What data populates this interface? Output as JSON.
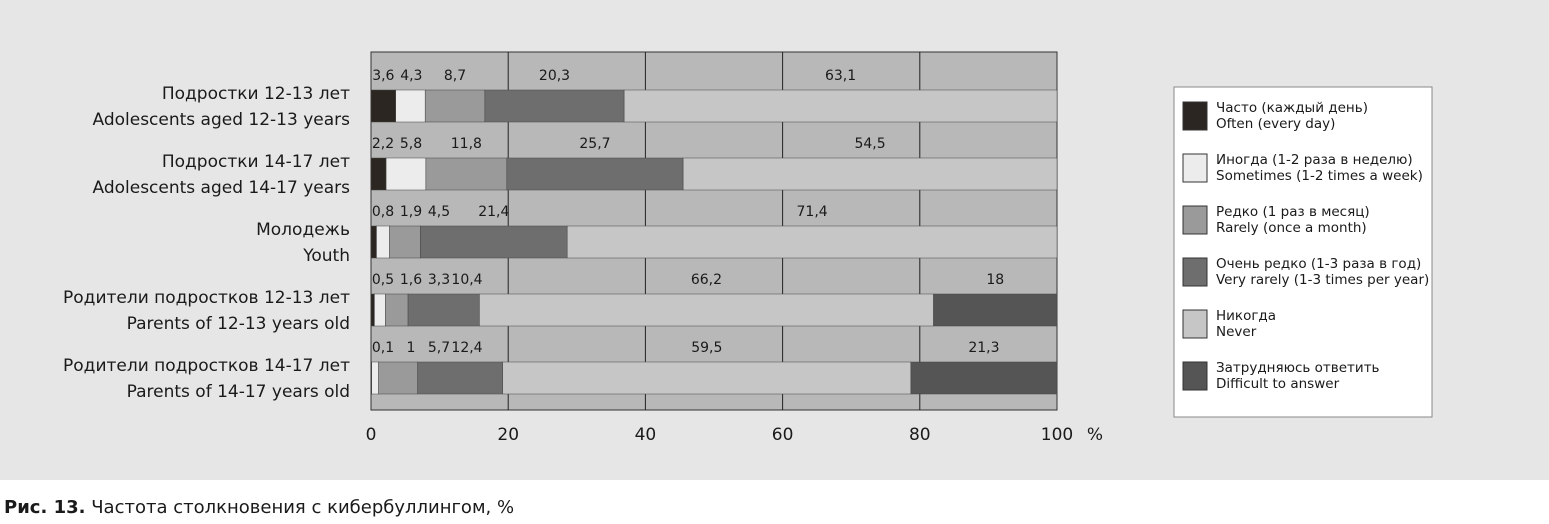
{
  "chart_data": {
    "type": "stacked-bar-horizontal",
    "figure_label": "Рис. 13.",
    "title": "Частота столкновения с кибербуллингом, %",
    "categories": [
      [
        "Подростки 12-13 лет",
        "Adolescents aged 12-13 years"
      ],
      [
        "Подростки 14-17 лет",
        "Adolescents aged 14-17 years"
      ],
      [
        "Молодежь",
        "Youth"
      ],
      [
        "Родители подростков 12-13 лет",
        "Parents of 12-13 years old"
      ],
      [
        "Родители подростков 14-17 лет",
        "Parents of 14-17 years old"
      ]
    ],
    "series": [
      {
        "name": [
          "Часто (каждый день)",
          "Often (every day)"
        ],
        "color": "#2b2622",
        "values": [
          3.6,
          2.2,
          0.8,
          0.5,
          0.1
        ],
        "value_labels": [
          "3,6",
          "2,2",
          "0,8",
          "0,5",
          "0,1"
        ]
      },
      {
        "name": [
          "Иногда (1-2 раза в неделю)",
          "Sometimes (1-2 times a week)"
        ],
        "color": "#ececec",
        "values": [
          4.3,
          5.8,
          1.9,
          1.6,
          1
        ],
        "value_labels": [
          "4,3",
          "5,8",
          "1,9",
          "1,6",
          "1"
        ]
      },
      {
        "name": [
          "Редко (1 раз в месяц)",
          "Rarely (once a month)"
        ],
        "color": "#9a9a9a",
        "values": [
          8.7,
          11.8,
          4.5,
          3.3,
          5.7
        ],
        "value_labels": [
          "8,7",
          "11,8",
          "4,5",
          "3,3",
          "5,7"
        ]
      },
      {
        "name": [
          "Очень редко (1-3 раза в год)",
          "Very rarely (1-3 times per year)"
        ],
        "color": "#6e6e6e",
        "values": [
          20.3,
          25.7,
          21.4,
          10.4,
          12.4
        ],
        "value_labels": [
          "20,3",
          "25,7",
          "21,4",
          "10,4",
          "12,4"
        ]
      },
      {
        "name": [
          "Никогда",
          "Never"
        ],
        "color": "#c6c6c6",
        "values": [
          63.1,
          54.5,
          71.4,
          66.2,
          59.5
        ],
        "value_labels": [
          "63,1",
          "54,5",
          "71,4",
          "66,2",
          "59,5"
        ]
      },
      {
        "name": [
          "Затрудняюсь ответить",
          "Difficult to answer"
        ],
        "color": "#555555",
        "values": [
          null,
          null,
          null,
          18,
          21.3
        ],
        "value_labels": [
          null,
          null,
          null,
          "18",
          "21,3"
        ]
      }
    ],
    "xlim": [
      0,
      100
    ],
    "xticks": [
      0,
      20,
      40,
      60,
      80,
      100
    ],
    "xlabel": "%",
    "grid": true,
    "legend": "right"
  }
}
